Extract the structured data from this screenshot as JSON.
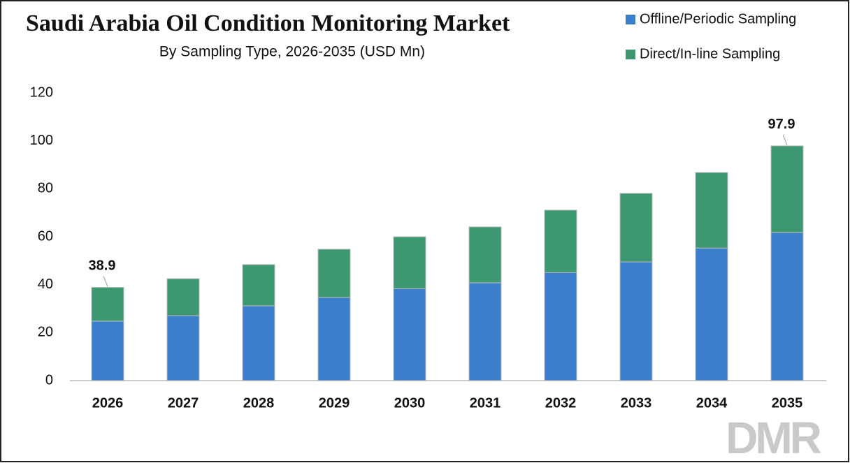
{
  "chart_data": {
    "type": "stacked_bar",
    "title": "Saudi Arabia Oil Condition Monitoring Market",
    "subtitle": "By Sampling Type, 2026-2035 (USD Mn)",
    "categories": [
      "2026",
      "2027",
      "2028",
      "2029",
      "2030",
      "2031",
      "2032",
      "2033",
      "2034",
      "2035"
    ],
    "series": [
      {
        "name": "Offline/Periodic Sampling",
        "color": "#3b7fcc",
        "values": [
          24.8,
          27.1,
          31.2,
          34.7,
          38.4,
          40.8,
          45.1,
          49.5,
          55.3,
          61.8
        ]
      },
      {
        "name": "Direct/In-line Sampling",
        "color": "#3d9770",
        "values": [
          14.1,
          15.4,
          17.2,
          20.1,
          21.6,
          23.3,
          26.0,
          28.6,
          31.5,
          36.1
        ]
      }
    ],
    "totals": [
      38.9,
      null,
      null,
      null,
      null,
      null,
      null,
      null,
      null,
      97.9
    ],
    "ylim": [
      0,
      120
    ],
    "yticks": [
      0,
      20,
      40,
      60,
      80,
      100,
      120
    ],
    "grid": false,
    "legend": "top-right",
    "watermark": "DMR"
  }
}
